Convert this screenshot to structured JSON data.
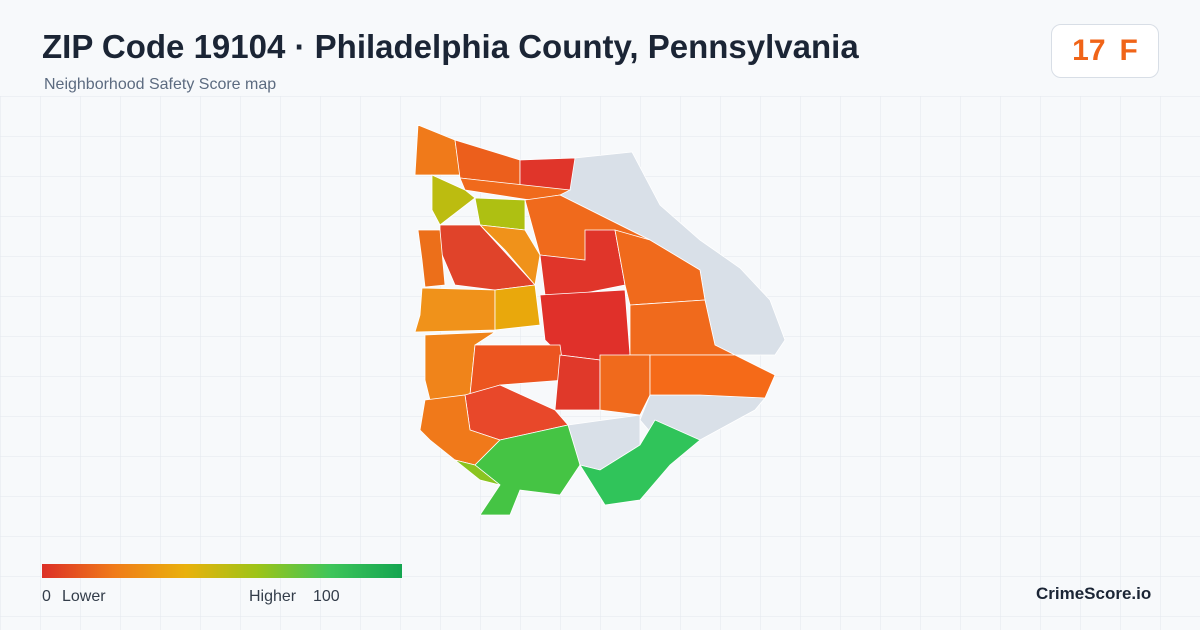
{
  "header": {
    "title": "ZIP Code 19104 · Philadelphia County, Pennsylvania",
    "subtitle": "Neighborhood Safety Score map"
  },
  "score": {
    "value": 17,
    "grade": "F"
  },
  "legend": {
    "min": 0,
    "min_label": "Lower",
    "max_label": "Higher",
    "max": 100
  },
  "brand": "CrimeScore.io"
}
